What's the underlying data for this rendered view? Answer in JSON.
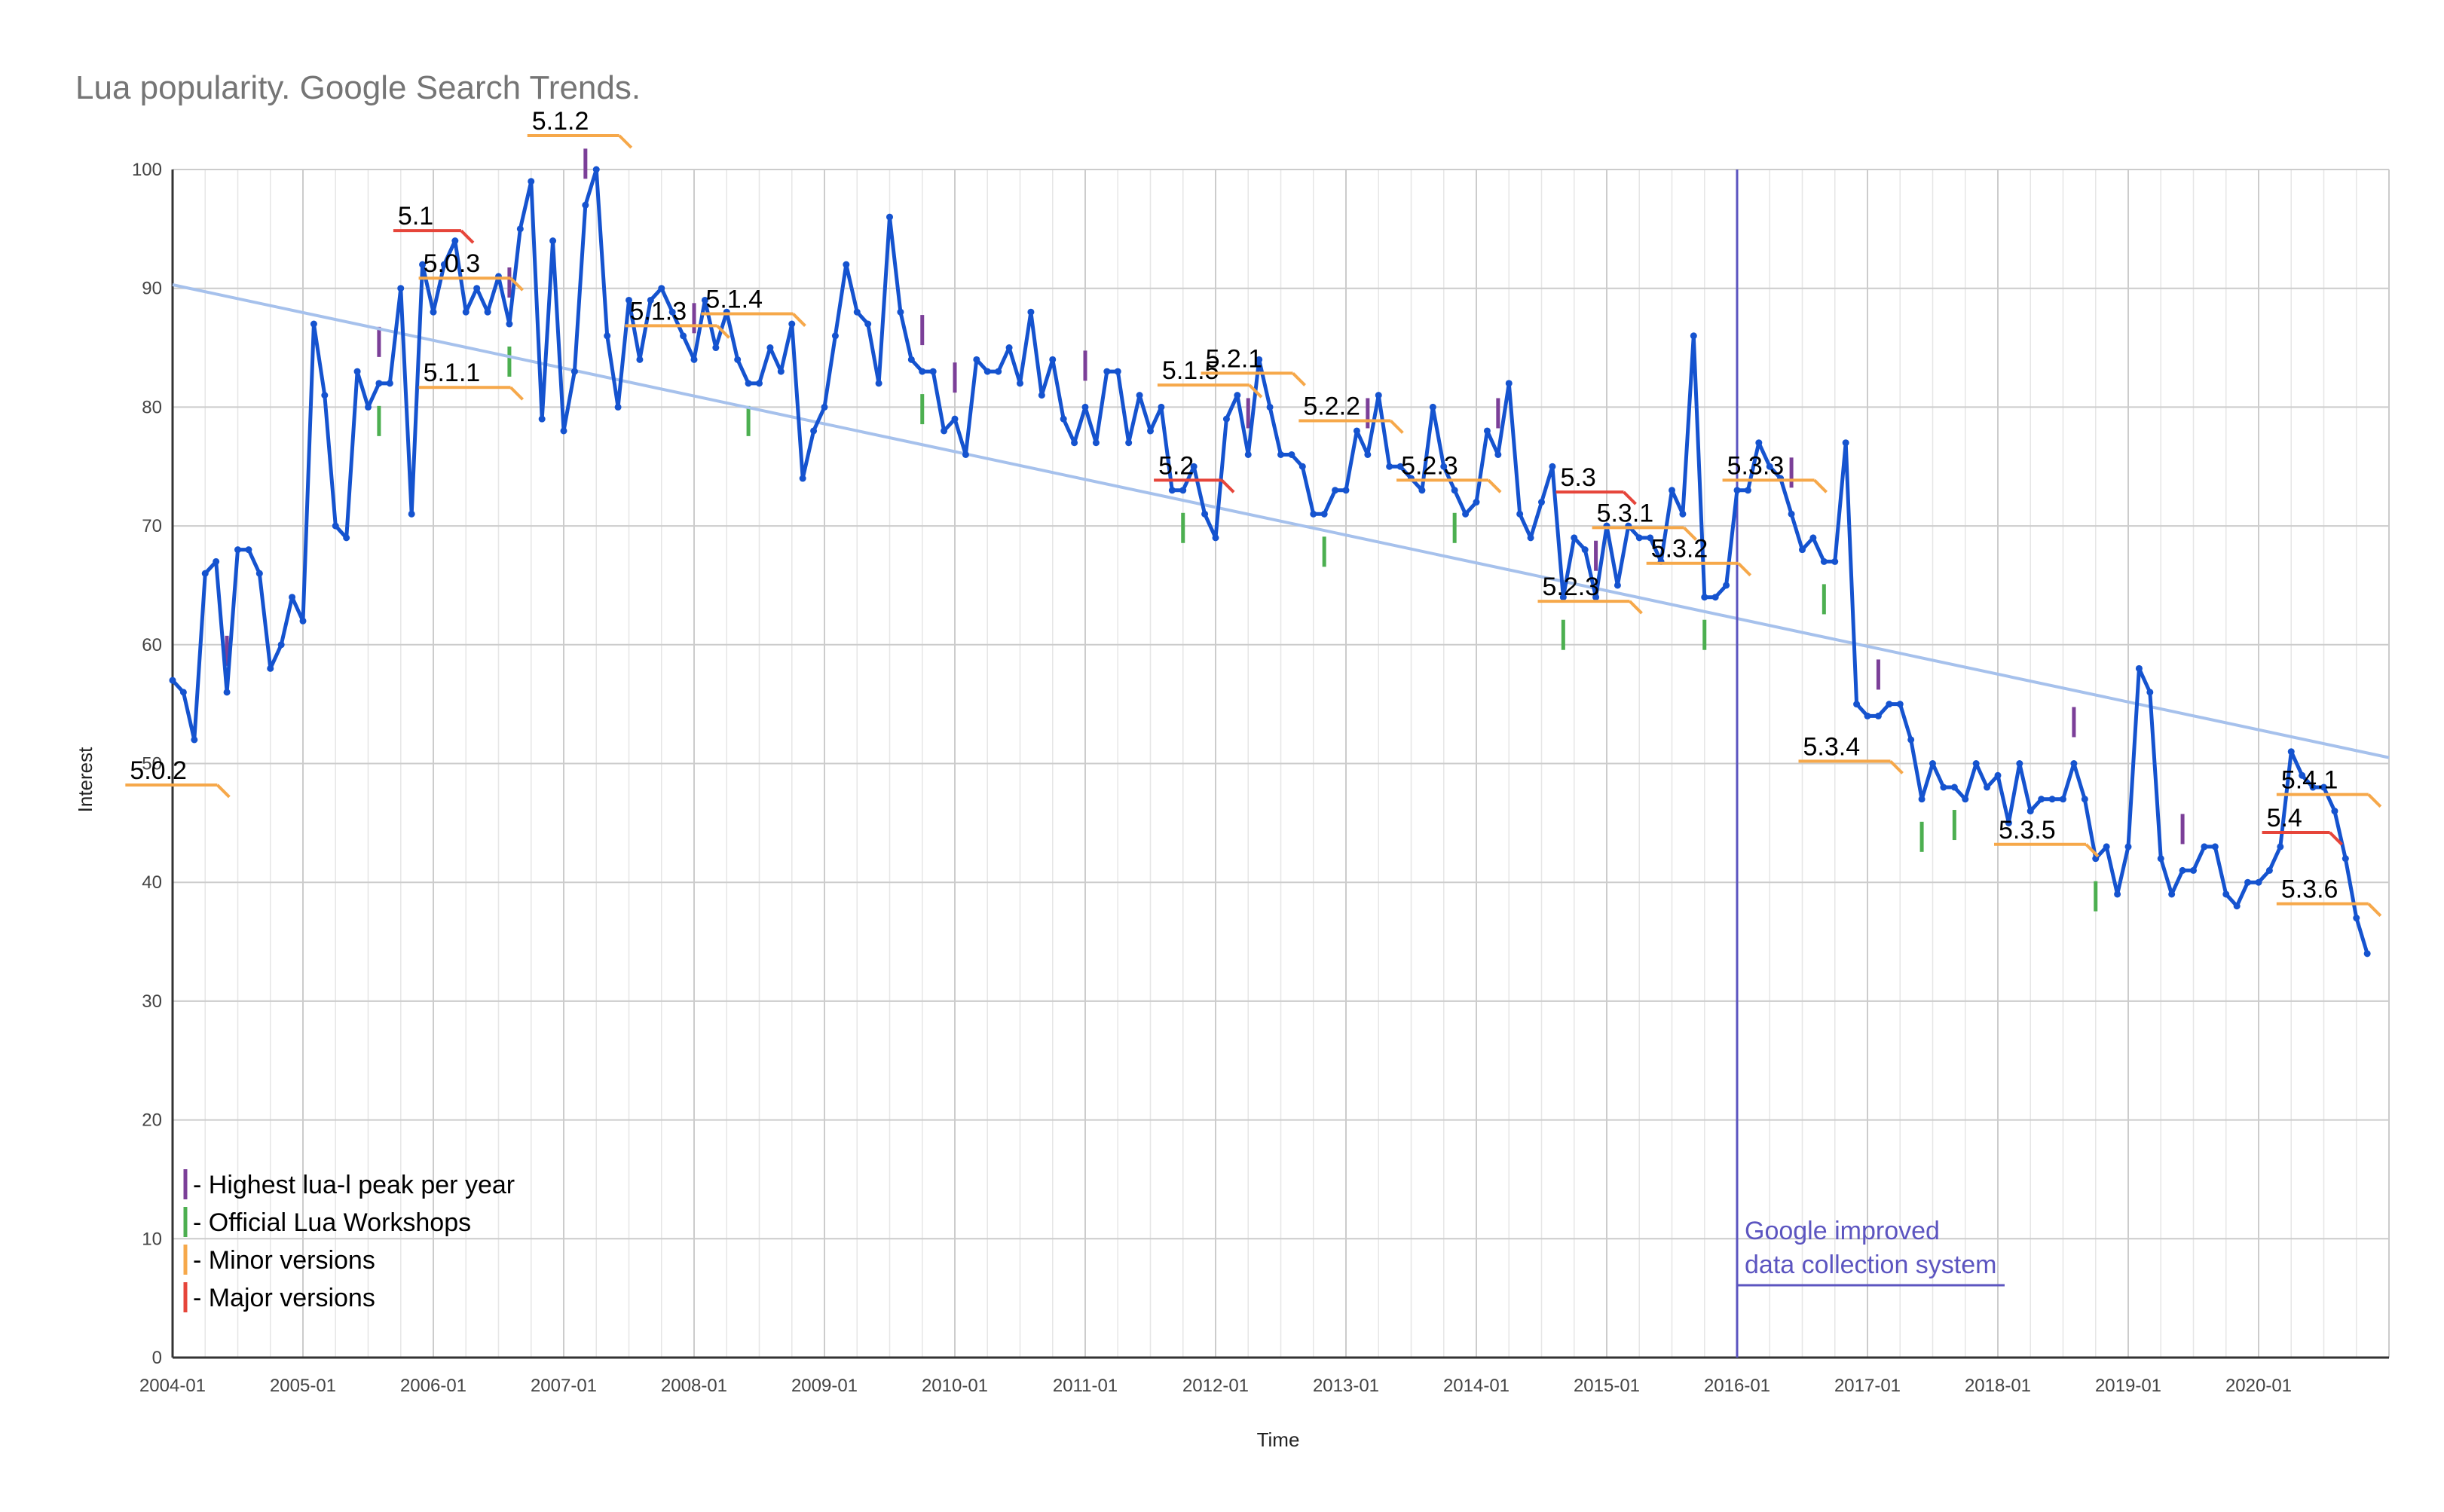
{
  "title": "Lua popularity. Google Search Trends.",
  "colors": {
    "series": "#1553cf",
    "trend": "#a6c1ec",
    "grid_major": "#cccccc",
    "grid_minor": "#e6e6e6",
    "lua_l_peak": "#7b3f98",
    "workshop": "#4caf50",
    "minor_version": "#f6a84a",
    "major_version": "#e6453a",
    "data_collection_line": "#5c55c0"
  },
  "chart_data": {
    "type": "line",
    "title": "Lua popularity. Google Search Trends.",
    "xlabel": "Time",
    "ylabel": "Interest",
    "ylim": [
      0,
      100
    ],
    "yticks": [
      0,
      10,
      20,
      30,
      40,
      50,
      60,
      70,
      80,
      90,
      100
    ],
    "xticks": [
      "2004-01",
      "2005-01",
      "2006-01",
      "2007-01",
      "2008-01",
      "2009-01",
      "2010-01",
      "2011-01",
      "2012-01",
      "2013-01",
      "2014-01",
      "2015-01",
      "2016-01",
      "2017-01",
      "2018-01",
      "2019-01",
      "2020-01"
    ],
    "x_start": "2004-01",
    "x_end": "2020-12",
    "grid": true,
    "series": [
      {
        "values": [
          57,
          56,
          52,
          66,
          67,
          56,
          68,
          68,
          66,
          58,
          60,
          64,
          62,
          87,
          81,
          70,
          69,
          83,
          80,
          82,
          82,
          90,
          71,
          92,
          88,
          92,
          94,
          88,
          90,
          88,
          91,
          87,
          95,
          99,
          79,
          94,
          78,
          83,
          97,
          100,
          86,
          80,
          89,
          84,
          89,
          90,
          88,
          86,
          84,
          89,
          85,
          88,
          84,
          82,
          82,
          85,
          83,
          87,
          74,
          78,
          80,
          86,
          92,
          88,
          87,
          82,
          96,
          88,
          84,
          83,
          83,
          78,
          79,
          76,
          84,
          83,
          83,
          85,
          82,
          88,
          81,
          84,
          79,
          77,
          80,
          77,
          83,
          83,
          77,
          81,
          78,
          80,
          73,
          73,
          75,
          71,
          69,
          79,
          81,
          76,
          84,
          80,
          76,
          76,
          75,
          71,
          71,
          73,
          73,
          78,
          76,
          81,
          75,
          75,
          74,
          73,
          80,
          75,
          73,
          71,
          72,
          78,
          76,
          82,
          71,
          69,
          72,
          75,
          64,
          69,
          68,
          64,
          70,
          65,
          70,
          69,
          69,
          67,
          73,
          71,
          86,
          64,
          64,
          65,
          73,
          73,
          77,
          75,
          74,
          71,
          68,
          69,
          67,
          67,
          77,
          55,
          54,
          54,
          55,
          55,
          52,
          47,
          50,
          48,
          48,
          47,
          50,
          48,
          49,
          45,
          50,
          46,
          47,
          47,
          47,
          50,
          47,
          42,
          43,
          39,
          43,
          58,
          56,
          42,
          39,
          41,
          41,
          43,
          43,
          39,
          38,
          40,
          40,
          41,
          43,
          51,
          49,
          48,
          48,
          46,
          42,
          37,
          34
        ]
      },
      {
        "name": "trend",
        "start": 90.3,
        "end": 50.5
      }
    ],
    "legend": [
      {
        "label": "- Highest lua-l peak per year",
        "color": "#7b3f98"
      },
      {
        "label": "- Official Lua Workshops",
        "color": "#4caf50"
      },
      {
        "label": "- Minor versions",
        "color": "#f6a84a"
      },
      {
        "label": "- Major versions",
        "color": "#e6453a"
      }
    ],
    "legend_position": "bottom-left",
    "annotations": {
      "versions": [
        {
          "label": "5.0.2",
          "date": "2004-03",
          "kind": "minor"
        },
        {
          "label": "5.0.3",
          "date": "2006-06",
          "kind": "minor"
        },
        {
          "label": "5.1.1",
          "date": "2006-06",
          "kind": "minor"
        },
        {
          "label": "5.1",
          "date": "2006-02",
          "kind": "major"
        },
        {
          "label": "5.1.2",
          "date": "2007-04",
          "kind": "minor"
        },
        {
          "label": "5.1.3",
          "date": "2008-01",
          "kind": "minor"
        },
        {
          "label": "5.1.4",
          "date": "2008-08",
          "kind": "minor"
        },
        {
          "label": "5.1.5",
          "date": "2012-02",
          "kind": "minor"
        },
        {
          "label": "5.2",
          "date": "2011-12",
          "kind": "major"
        },
        {
          "label": "5.2.1",
          "date": "2012-06",
          "kind": "minor"
        },
        {
          "label": "5.2.2",
          "date": "2013-03",
          "kind": "minor"
        },
        {
          "label": "5.2.3",
          "date": "2013-12",
          "kind": "minor"
        },
        {
          "label": "5.3",
          "date": "2015-01",
          "kind": "major"
        },
        {
          "label": "5.3.1",
          "date": "2015-06",
          "kind": "minor"
        },
        {
          "label": "5.2.3",
          "date": "2015-01",
          "kind": "minor"
        },
        {
          "label": "5.3.2",
          "date": "2015-11",
          "kind": "minor"
        },
        {
          "label": "5.3.3",
          "date": "2016-06",
          "kind": "minor"
        },
        {
          "label": "5.3.4",
          "date": "2017-01",
          "kind": "minor"
        },
        {
          "label": "5.3.5",
          "date": "2018-07",
          "kind": "minor"
        },
        {
          "label": "5.4",
          "date": "2020-06",
          "kind": "major"
        },
        {
          "label": "5.3.6",
          "date": "2020-09",
          "kind": "minor"
        },
        {
          "label": "5.4.1",
          "date": "2020-09",
          "kind": "minor"
        }
      ],
      "lua_l_peaks": [
        "2004-06",
        "2005-08",
        "2006-08",
        "2007-03",
        "2008-01",
        "2009-10",
        "2010-01",
        "2011-01",
        "2012-04",
        "2013-03",
        "2014-03",
        "2015-00",
        "2016-06",
        "2017-02",
        "2018-08",
        "2019-06"
      ],
      "workshops": [
        "2005-08",
        "2006-08",
        "2008-06",
        "2009-10",
        "2011-10",
        "2012-11",
        "2013-11",
        "2014-09",
        "2015-10",
        "2016-09",
        "2017-06",
        "2017-09",
        "2018-10"
      ],
      "note": {
        "date": "2016-01",
        "lines": [
          "Google improved",
          "data collection system"
        ]
      }
    }
  }
}
